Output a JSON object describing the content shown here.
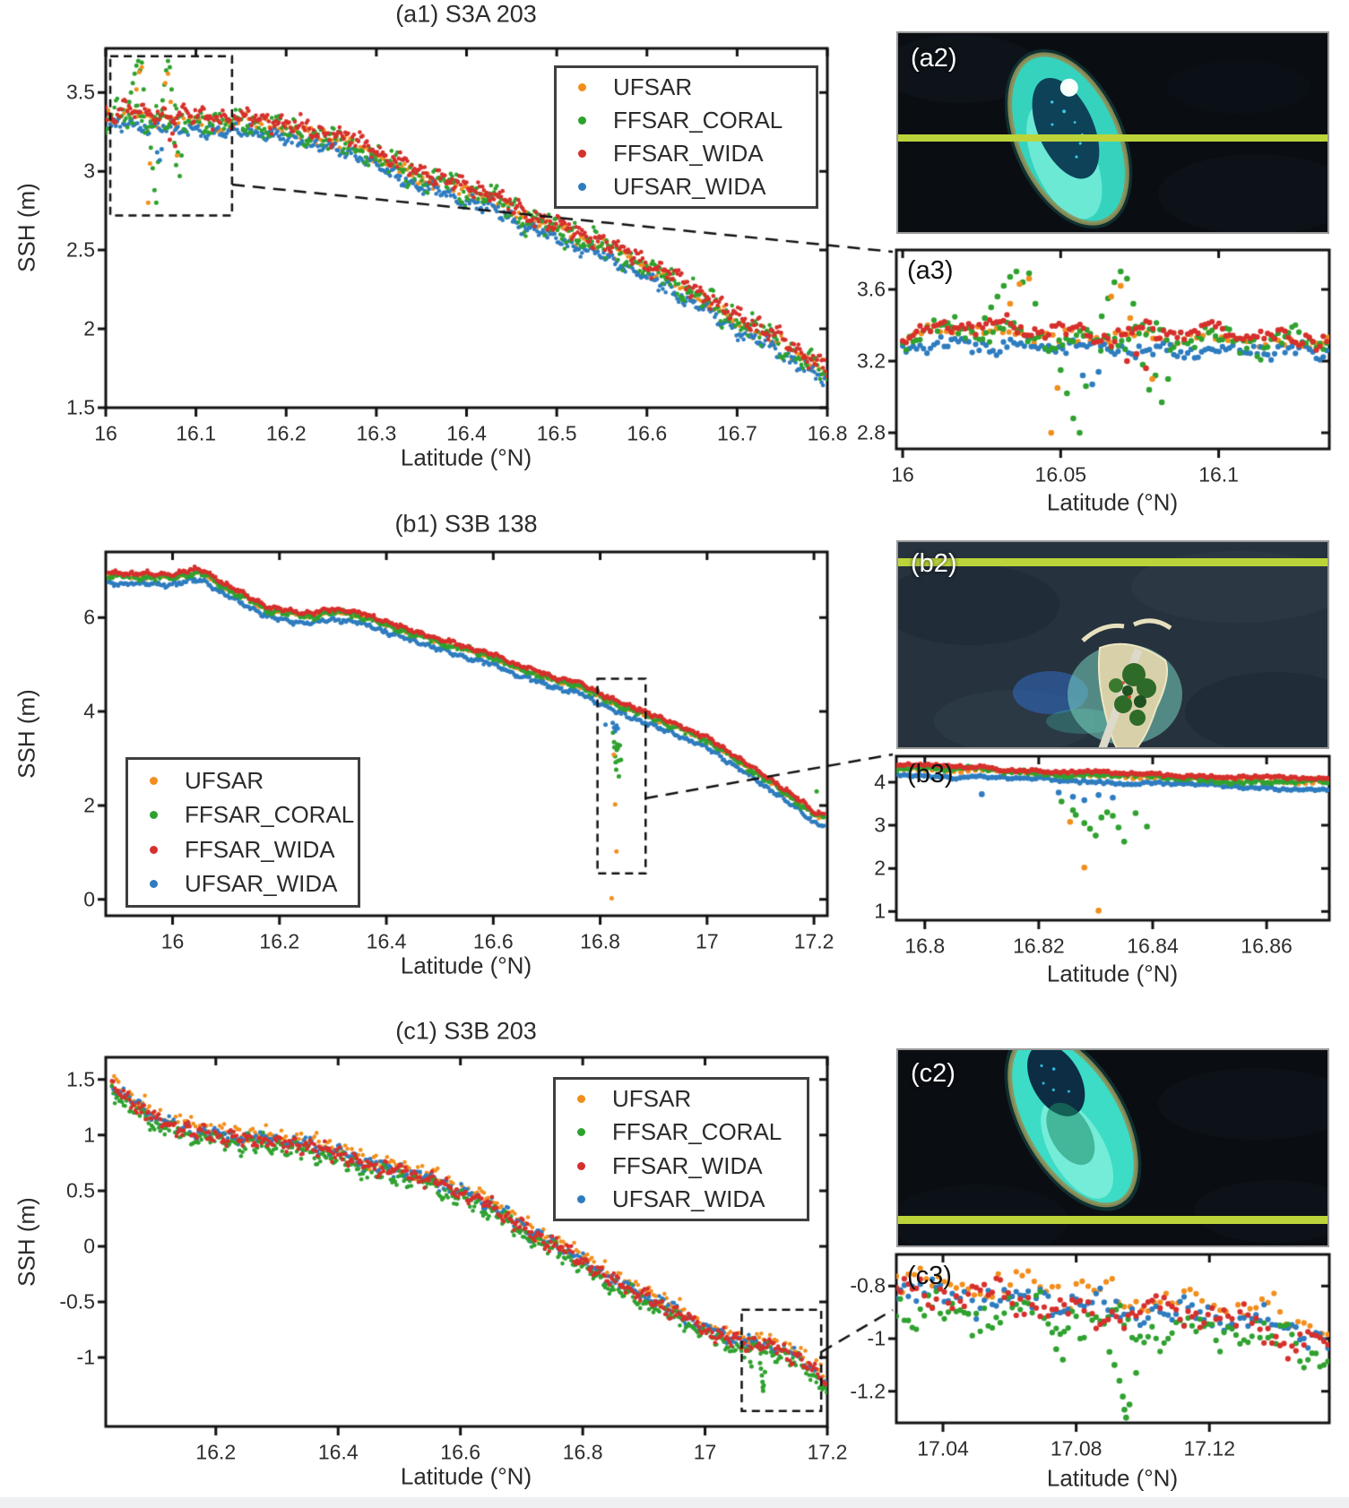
{
  "figure": {
    "background": "#ffffff",
    "text_color": "#2b2b2b",
    "footer_strip_color": "#eef0f2",
    "axis_color": "#111111"
  },
  "series": [
    {
      "name": "UFSAR",
      "color": "#F28E1C"
    },
    {
      "name": "FFSAR_CORAL",
      "color": "#2FA12F"
    },
    {
      "name": "FFSAR_WIDA",
      "color": "#D6302C"
    },
    {
      "name": "UFSAR_WIDA",
      "color": "#2E7CBF"
    }
  ],
  "images": [
    {
      "id": "a2",
      "label": "(a2)",
      "transect_color": "#BCD43A"
    },
    {
      "id": "b2",
      "label": "(b2)",
      "transect_color": "#BCD43A"
    },
    {
      "id": "c2",
      "label": "(c2)",
      "transect_color": "#BCD43A"
    }
  ],
  "chart_data": [
    {
      "id": "a1",
      "type": "scatter",
      "title": "(a1) S3A 203",
      "xlabel": "Latitude (°N)",
      "ylabel": "SSH (m)",
      "xlim": [
        16,
        16.8
      ],
      "ylim": [
        1.5,
        3.78
      ],
      "xticks": [
        16,
        16.1,
        16.2,
        16.3,
        16.4,
        16.5,
        16.6,
        16.7,
        16.8
      ],
      "yticks": [
        1.5,
        2,
        2.5,
        3,
        3.5
      ],
      "legend_position": "top-right",
      "zoom_box": {
        "x": [
          16.005,
          16.14
        ],
        "y": [
          2.72,
          3.73
        ]
      },
      "step": 0.0016,
      "noise": 0.055,
      "wiggle_period": 0.022,
      "offsets": [
        0,
        0,
        0.03,
        -0.06
      ],
      "noise_scale": [
        0.85,
        1.4,
        1.0,
        0.8
      ],
      "step_scale": [
        1.8,
        1,
        1,
        1
      ],
      "trend": [
        [
          16.0,
          3.33
        ],
        [
          16.02,
          3.36
        ],
        [
          16.05,
          3.34
        ],
        [
          16.08,
          3.32
        ],
        [
          16.1,
          3.33
        ],
        [
          16.13,
          3.3
        ],
        [
          16.16,
          3.32
        ],
        [
          16.2,
          3.27
        ],
        [
          16.24,
          3.22
        ],
        [
          16.28,
          3.16
        ],
        [
          16.31,
          3.06
        ],
        [
          16.34,
          2.98
        ],
        [
          16.37,
          2.93
        ],
        [
          16.4,
          2.87
        ],
        [
          16.43,
          2.82
        ],
        [
          16.46,
          2.72
        ],
        [
          16.5,
          2.63
        ],
        [
          16.54,
          2.55
        ],
        [
          16.58,
          2.45
        ],
        [
          16.62,
          2.33
        ],
        [
          16.66,
          2.2
        ],
        [
          16.7,
          2.05
        ],
        [
          16.74,
          1.94
        ],
        [
          16.77,
          1.83
        ],
        [
          16.8,
          1.72
        ]
      ],
      "anomalies": [
        {
          "series": 1,
          "points": [
            [
              16.026,
              3.44
            ],
            [
              16.028,
              3.5
            ],
            [
              16.03,
              3.56
            ],
            [
              16.032,
              3.62
            ],
            [
              16.034,
              3.67
            ],
            [
              16.036,
              3.7
            ],
            [
              16.038,
              3.64
            ],
            [
              16.04,
              3.69
            ],
            [
              16.042,
              3.52
            ],
            [
              16.05,
              3.15
            ],
            [
              16.052,
              3.02
            ],
            [
              16.054,
              2.88
            ],
            [
              16.056,
              2.8
            ],
            [
              16.058,
              3.06
            ],
            [
              16.063,
              3.45
            ],
            [
              16.065,
              3.55
            ],
            [
              16.067,
              3.64
            ],
            [
              16.069,
              3.7
            ],
            [
              16.071,
              3.66
            ],
            [
              16.073,
              3.52
            ],
            [
              16.076,
              3.18
            ],
            [
              16.078,
              3.04
            ],
            [
              16.08,
              3.12
            ],
            [
              16.082,
              2.97
            ],
            [
              16.084,
              3.1
            ]
          ]
        },
        {
          "series": 0,
          "points": [
            [
              16.034,
              3.52
            ],
            [
              16.037,
              3.63
            ],
            [
              16.04,
              3.66
            ],
            [
              16.047,
              2.8
            ],
            [
              16.049,
              3.05
            ],
            [
              16.066,
              3.56
            ],
            [
              16.069,
              3.62
            ],
            [
              16.072,
              3.44
            ],
            [
              16.079,
              3.1
            ]
          ]
        },
        {
          "series": 3,
          "points": [
            [
              16.057,
              3.12
            ],
            [
              16.06,
              3.07
            ],
            [
              16.062,
              3.14
            ]
          ]
        },
        {
          "series": 2,
          "points": [
            [
              16.071,
              3.2
            ],
            [
              16.074,
              3.24
            ],
            [
              16.077,
              3.16
            ]
          ]
        }
      ]
    },
    {
      "id": "a3",
      "type": "scatter",
      "panel_label": "(a3)",
      "source": "a1",
      "xlabel": "Latitude (°N)",
      "xlim": [
        15.998,
        16.135
      ],
      "ylim": [
        2.71,
        3.82
      ],
      "xticks": [
        16,
        16.05,
        16.1
      ],
      "yticks": [
        2.8,
        3.2,
        3.6
      ],
      "step": 0.0011
    },
    {
      "id": "b1",
      "type": "scatter",
      "title": "(b1) S3B 138",
      "xlabel": "Latitude (°N)",
      "ylabel": "SSH (m)",
      "xlim": [
        15.875,
        17.225
      ],
      "ylim": [
        -0.35,
        7.4
      ],
      "xticks": [
        16,
        16.2,
        16.4,
        16.6,
        16.8,
        17,
        17.2
      ],
      "yticks": [
        0,
        2,
        4,
        6
      ],
      "legend_position": "bottom-left",
      "zoom_box": {
        "x": [
          16.795,
          16.885
        ],
        "y": [
          0.55,
          4.7
        ]
      },
      "step": 0.0026,
      "noise": 0.05,
      "wiggle_period": 0.03,
      "offsets": [
        0,
        0,
        0.07,
        -0.15
      ],
      "noise_scale": [
        0.8,
        1.3,
        0.9,
        1.0
      ],
      "step_scale": [
        1.8,
        1,
        1,
        1
      ],
      "trend": [
        [
          15.88,
          6.88
        ],
        [
          15.95,
          6.87
        ],
        [
          16.0,
          6.85
        ],
        [
          16.04,
          6.95
        ],
        [
          16.06,
          6.93
        ],
        [
          16.1,
          6.62
        ],
        [
          16.14,
          6.4
        ],
        [
          16.18,
          6.15
        ],
        [
          16.22,
          6.08
        ],
        [
          16.26,
          6.02
        ],
        [
          16.3,
          6.12
        ],
        [
          16.33,
          6.08
        ],
        [
          16.36,
          6.0
        ],
        [
          16.4,
          5.85
        ],
        [
          16.44,
          5.68
        ],
        [
          16.48,
          5.55
        ],
        [
          16.52,
          5.4
        ],
        [
          16.56,
          5.28
        ],
        [
          16.6,
          5.15
        ],
        [
          16.64,
          4.95
        ],
        [
          16.68,
          4.8
        ],
        [
          16.72,
          4.65
        ],
        [
          16.76,
          4.55
        ],
        [
          16.8,
          4.32
        ],
        [
          16.84,
          4.1
        ],
        [
          16.88,
          3.95
        ],
        [
          16.92,
          3.75
        ],
        [
          16.96,
          3.58
        ],
        [
          17.0,
          3.38
        ],
        [
          17.04,
          3.08
        ],
        [
          17.08,
          2.78
        ],
        [
          17.12,
          2.48
        ],
        [
          17.16,
          2.15
        ],
        [
          17.2,
          1.8
        ],
        [
          17.22,
          1.72
        ]
      ],
      "anomalies": [
        {
          "series": 1,
          "points": [
            [
              16.824,
              3.55
            ],
            [
              16.826,
              3.35
            ],
            [
              16.8265,
              3.24
            ],
            [
              16.828,
              3.05
            ],
            [
              16.829,
              2.92
            ],
            [
              16.83,
              2.76
            ],
            [
              16.831,
              3.18
            ],
            [
              16.832,
              3.3
            ],
            [
              16.833,
              3.22
            ],
            [
              16.834,
              2.95
            ],
            [
              16.835,
              2.62
            ],
            [
              16.837,
              3.28
            ],
            [
              16.839,
              2.97
            ],
            [
              17.205,
              2.3
            ]
          ]
        },
        {
          "series": 0,
          "points": [
            [
              16.8255,
              3.08
            ],
            [
              16.828,
              2.02
            ],
            [
              16.8305,
              1.02
            ],
            [
              16.8215,
              0.02
            ]
          ]
        },
        {
          "series": 3,
          "points": [
            [
              16.81,
              3.72
            ],
            [
              16.8235,
              3.76
            ],
            [
              16.826,
              3.66
            ],
            [
              16.828,
              3.58
            ],
            [
              16.8305,
              3.7
            ],
            [
              16.833,
              3.64
            ]
          ]
        }
      ]
    },
    {
      "id": "b3",
      "type": "scatter",
      "panel_label": "(b3)",
      "source": "b1",
      "xlabel": "Latitude (°N)",
      "xlim": [
        16.795,
        16.871
      ],
      "ylim": [
        0.8,
        4.6
      ],
      "xticks": [
        16.8,
        16.82,
        16.84,
        16.86
      ],
      "yticks": [
        1,
        2,
        3,
        4
      ],
      "step": 0.0007
    },
    {
      "id": "c1",
      "type": "scatter",
      "title": "(c1) S3B 203",
      "xlabel": "Latitude (°N)",
      "ylabel": "SSH (m)",
      "xlim": [
        16.02,
        17.2
      ],
      "ylim": [
        -1.62,
        1.7
      ],
      "xticks": [
        16.2,
        16.4,
        16.6,
        16.8,
        17,
        17.2
      ],
      "yticks": [
        -1,
        -0.5,
        0,
        0.5,
        1,
        1.5
      ],
      "legend_position": "top-right",
      "zoom_box": {
        "x": [
          17.06,
          17.19
        ],
        "y": [
          -1.48,
          -0.57
        ]
      },
      "step": 0.0024,
      "noise": 0.065,
      "wiggle_period": 0.025,
      "offsets": [
        0.05,
        -0.05,
        0,
        0.01
      ],
      "noise_scale": [
        1.0,
        1.15,
        1.0,
        0.9
      ],
      "step_scale": [
        1.5,
        1,
        1,
        1
      ],
      "trend": [
        [
          16.03,
          1.44
        ],
        [
          16.06,
          1.3
        ],
        [
          16.09,
          1.18
        ],
        [
          16.12,
          1.1
        ],
        [
          16.16,
          1.03
        ],
        [
          16.2,
          1.0
        ],
        [
          16.24,
          0.97
        ],
        [
          16.28,
          0.96
        ],
        [
          16.32,
          0.92
        ],
        [
          16.36,
          0.89
        ],
        [
          16.4,
          0.84
        ],
        [
          16.44,
          0.74
        ],
        [
          16.48,
          0.7
        ],
        [
          16.52,
          0.65
        ],
        [
          16.56,
          0.58
        ],
        [
          16.6,
          0.48
        ],
        [
          16.64,
          0.4
        ],
        [
          16.68,
          0.25
        ],
        [
          16.72,
          0.1
        ],
        [
          16.76,
          0.0
        ],
        [
          16.8,
          -0.14
        ],
        [
          16.84,
          -0.28
        ],
        [
          16.88,
          -0.4
        ],
        [
          16.92,
          -0.5
        ],
        [
          16.96,
          -0.62
        ],
        [
          17.0,
          -0.74
        ],
        [
          17.04,
          -0.84
        ],
        [
          17.08,
          -0.88
        ],
        [
          17.12,
          -0.92
        ],
        [
          17.15,
          -1.0
        ],
        [
          17.18,
          -1.12
        ],
        [
          17.2,
          -1.25
        ]
      ],
      "anomalies": [
        {
          "series": 1,
          "points": [
            [
              17.074,
              -1.04
            ],
            [
              17.076,
              -1.08
            ],
            [
              17.09,
              -1.05
            ],
            [
              17.0915,
              -1.1
            ],
            [
              17.093,
              -1.16
            ],
            [
              17.094,
              -1.22
            ],
            [
              17.0945,
              -1.27
            ],
            [
              17.095,
              -1.3
            ],
            [
              17.096,
              -1.25
            ],
            [
              17.098,
              -1.13
            ]
          ]
        }
      ]
    },
    {
      "id": "c3",
      "type": "scatter",
      "panel_label": "(c3)",
      "source": "c1",
      "xlabel": "Latitude (°N)",
      "xlim": [
        17.026,
        17.156
      ],
      "ylim": [
        -1.32,
        -0.68
      ],
      "xticks": [
        17.04,
        17.08,
        17.12
      ],
      "yticks": [
        -0.8,
        -1,
        -1.2
      ],
      "step": 0.0012
    }
  ]
}
